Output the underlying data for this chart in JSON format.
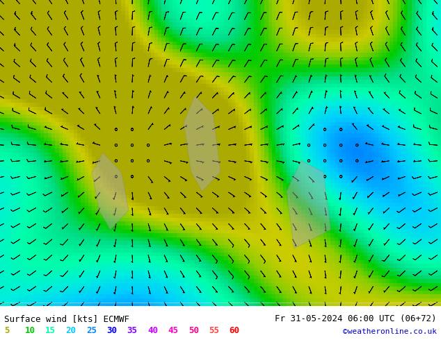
{
  "title_left": "Surface wind [kts] ECMWF",
  "title_right": "Fr 31-05-2024 06:00 UTC (06+72)",
  "credit": "©weatheronline.co.uk",
  "legend_values": [
    "5",
    "10",
    "15",
    "20",
    "25",
    "30",
    "35",
    "40",
    "45",
    "50",
    "55",
    "60"
  ],
  "legend_colors": [
    "#aaaa00",
    "#00cc00",
    "#00ffaa",
    "#00ccff",
    "#0088ff",
    "#0000ff",
    "#8800ff",
    "#cc00ff",
    "#ff00cc",
    "#ff0088",
    "#ff4444",
    "#ff0000"
  ],
  "bg_color": "#ffffff",
  "map_bg": "wind_map_placeholder",
  "figsize": [
    6.34,
    4.9
  ],
  "dpi": 100,
  "bottom_bar_height": 0.1,
  "bottom_bar_color": "#ffffff",
  "text_color": "#000000",
  "font_family": "monospace",
  "font_size_main": 9,
  "font_size_legend": 9,
  "credit_color": "#0000cc"
}
